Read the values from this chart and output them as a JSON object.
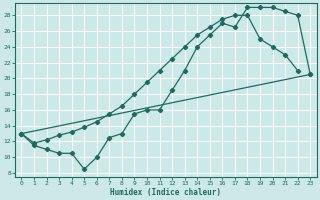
{
  "xlabel": "Humidex (Indice chaleur)",
  "bg_color": "#cce8e8",
  "grid_color": "#ffffff",
  "line_color": "#1e6b5e",
  "xlim": [
    -0.5,
    23.5
  ],
  "ylim": [
    7.5,
    29.5
  ],
  "xticks": [
    0,
    1,
    2,
    3,
    4,
    5,
    6,
    7,
    8,
    9,
    10,
    11,
    12,
    13,
    14,
    15,
    16,
    17,
    18,
    19,
    20,
    21,
    22,
    23
  ],
  "yticks": [
    8,
    10,
    12,
    14,
    16,
    18,
    20,
    22,
    24,
    26,
    28
  ],
  "line1_x": [
    0,
    1,
    2,
    3,
    4,
    5,
    6,
    7,
    8,
    9,
    10,
    11,
    12,
    13,
    14,
    15,
    16,
    17,
    18,
    19,
    20,
    21,
    22,
    23
  ],
  "line1_y": [
    13.0,
    11.5,
    11.0,
    10.5,
    10.5,
    8.5,
    10.0,
    12.5,
    13.0,
    15.5,
    16.0,
    16.0,
    18.5,
    21.0,
    24.0,
    25.5,
    27.0,
    26.5,
    29.0,
    29.0,
    29.0,
    28.5,
    28.0,
    20.5
  ],
  "line2_x": [
    0,
    1,
    2,
    3,
    4,
    5,
    6,
    7,
    8,
    9,
    10,
    11,
    12,
    13,
    14,
    15,
    16,
    17,
    18,
    19,
    20,
    21,
    22
  ],
  "line2_y": [
    13.0,
    11.8,
    12.2,
    12.8,
    13.2,
    13.8,
    14.5,
    15.5,
    16.5,
    18.0,
    19.5,
    21.0,
    22.5,
    24.0,
    25.5,
    26.5,
    27.5,
    28.0,
    28.0,
    25.0,
    24.0,
    23.0,
    21.0
  ],
  "line3_x": [
    0,
    23
  ],
  "line3_y": [
    13.0,
    20.5
  ]
}
